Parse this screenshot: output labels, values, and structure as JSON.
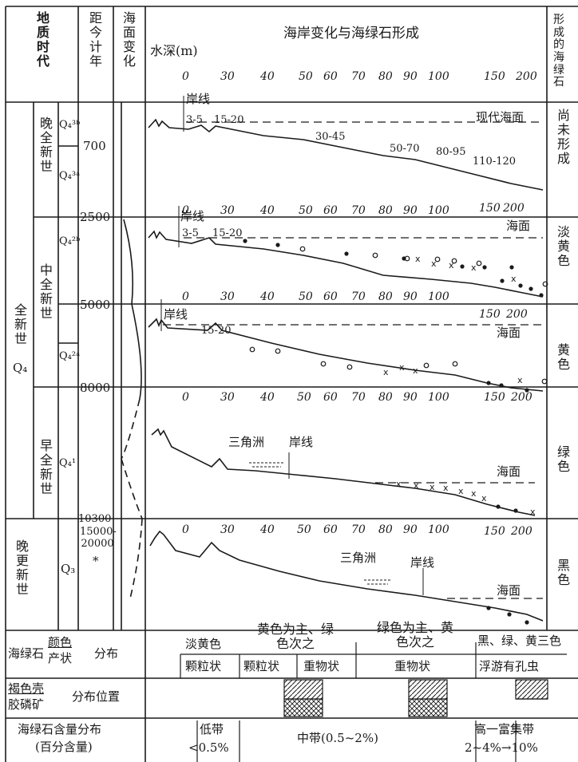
{
  "header": {
    "geo_age": "地质时代",
    "years_ago": "距今计年",
    "sea_change": "海面变化",
    "main_title": "海岸变化与海绿石形成",
    "water_depth": "水深(m)",
    "right_col": "形成的海绿石"
  },
  "top_ticks": [
    "0",
    "30",
    "40",
    "50",
    "60",
    "70",
    "80",
    "90",
    "100",
    "150",
    "200"
  ],
  "epochs": {
    "holocene": "全新世",
    "holocene_code": "Q₄",
    "late_holocene": "晚全新世",
    "middle_holocene": "中全新世",
    "early_holocene": "早全新世",
    "pleistocene": "晚更新世",
    "pleistocene_code": "Q₃"
  },
  "sub_codes": [
    "Q₄³ᵇ",
    "Q₄³ᵃ",
    "Q₄²ᵇ",
    "Q₄²ᵃ",
    "Q₄¹"
  ],
  "years": [
    "700",
    "2500",
    "5000",
    "8000",
    "10300",
    "15000-20000",
    "*"
  ],
  "panels": [
    {
      "ticks": [],
      "shore": "岸线",
      "depths": [
        "3-5",
        "15-20",
        "30-45",
        "50-70",
        "80-95",
        "110-120"
      ],
      "sea": "现代海面",
      "color": "尚未形成"
    },
    {
      "ticks": [
        "0",
        "30",
        "40",
        "50",
        "60",
        "70",
        "80",
        "90",
        "100",
        "150",
        "200"
      ],
      "shore": "岸线",
      "depths": [
        "3-5",
        "15-20"
      ],
      "sea": "海面",
      "color": "淡黄色"
    },
    {
      "ticks": [
        "0",
        "30",
        "40",
        "50",
        "60",
        "70",
        "80",
        "90",
        "100",
        "150",
        "200"
      ],
      "shore": "岸线",
      "depths": [
        "15-20"
      ],
      "sea": "海面",
      "color": "黄色"
    },
    {
      "ticks": [
        "0",
        "30",
        "40",
        "50",
        "60",
        "70",
        "80",
        "90",
        "100",
        "150",
        "200"
      ],
      "delta": "三角洲",
      "shore": "岸线",
      "sea": "海面",
      "color": "绿色"
    },
    {
      "ticks": [
        "0",
        "30",
        "40",
        "50",
        "60",
        "70",
        "80",
        "90",
        "100",
        "150",
        "200"
      ],
      "delta": "三角洲",
      "shore": "岸线",
      "sea": "海面",
      "color": "黑色"
    }
  ],
  "bottom": {
    "row1_label_a": "海绿石",
    "row1_label_b": "颜色",
    "row1_label_c": "产状",
    "row1_label_d": "分布",
    "colors": [
      "淡黄色",
      "黄色为主、绿色次之",
      "绿色为主、黄色次之",
      "黑、绿、黄三色"
    ],
    "forms": [
      "颗粒状",
      "颗粒状",
      "重物状",
      "重物状",
      "浮游有孔虫"
    ],
    "row2_label_a": "褐色壳",
    "row2_label_b": "胶磷矿",
    "row2_label_c": "分布位置",
    "row3_label_a": "海绿石含量分布",
    "row3_label_b": "(百分含量)",
    "low_band": "低带",
    "low_value": "<0.5%",
    "mid_band": "中带(0.5~2%)",
    "high_band": "高一富集带",
    "high_value": "2~4%→10%"
  }
}
